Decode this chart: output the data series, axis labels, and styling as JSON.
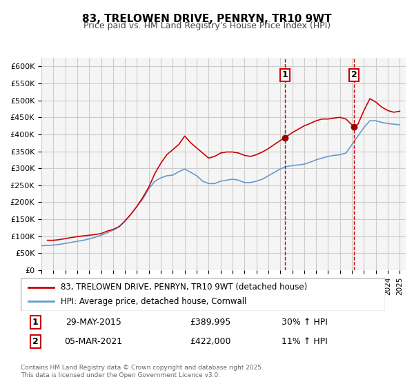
{
  "title": "83, TRELOWEN DRIVE, PENRYN, TR10 9WT",
  "subtitle": "Price paid vs. HM Land Registry's House Price Index (HPI)",
  "legend_line1": "83, TRELOWEN DRIVE, PENRYN, TR10 9WT (detached house)",
  "legend_line2": "HPI: Average price, detached house, Cornwall",
  "footnote": "Contains HM Land Registry data © Crown copyright and database right 2025.\nThis data is licensed under the Open Government Licence v3.0.",
  "red_color": "#cc0000",
  "blue_color": "#6699cc",
  "marker_color": "#990000",
  "vline_color": "#cc0000",
  "grid_color": "#cccccc",
  "bg_color": "#ffffff",
  "plot_bg_color": "#f5f5f5",
  "ylim": [
    0,
    625000
  ],
  "yticks": [
    0,
    50000,
    100000,
    150000,
    200000,
    250000,
    300000,
    350000,
    400000,
    450000,
    500000,
    550000,
    600000
  ],
  "ytick_labels": [
    "£0",
    "£50K",
    "£100K",
    "£150K",
    "£200K",
    "£250K",
    "£300K",
    "£350K",
    "£400K",
    "£450K",
    "£500K",
    "£550K",
    "£600K"
  ],
  "xlim_start": 1995.0,
  "xlim_end": 2025.5,
  "event1_x": 2015.41,
  "event1_label": "1",
  "event1_price": "£389,995",
  "event1_hpi": "30% ↑ HPI",
  "event1_date": "29-MAY-2015",
  "event2_x": 2021.17,
  "event2_label": "2",
  "event2_price": "£422,000",
  "event2_hpi": "11% ↑ HPI",
  "event2_date": "05-MAR-2021",
  "red_x": [
    1995.5,
    1996.0,
    1996.5,
    1997.0,
    1997.5,
    1998.0,
    1998.5,
    1999.0,
    1999.5,
    2000.0,
    2000.5,
    2001.0,
    2001.5,
    2002.0,
    2002.5,
    2003.0,
    2003.5,
    2004.0,
    2004.5,
    2005.0,
    2005.5,
    2006.0,
    2006.5,
    2007.0,
    2007.5,
    2008.0,
    2008.5,
    2009.0,
    2009.5,
    2010.0,
    2010.5,
    2011.0,
    2011.5,
    2012.0,
    2012.5,
    2013.0,
    2013.5,
    2014.0,
    2014.5,
    2015.0,
    2015.41,
    2015.5,
    2016.0,
    2016.5,
    2017.0,
    2017.5,
    2018.0,
    2018.5,
    2019.0,
    2019.5,
    2020.0,
    2020.5,
    2021.17,
    2021.5,
    2022.0,
    2022.5,
    2023.0,
    2023.5,
    2024.0,
    2024.5,
    2025.0
  ],
  "red_y": [
    88000,
    88000,
    90000,
    93000,
    96000,
    99000,
    101000,
    103000,
    105000,
    108000,
    115000,
    120000,
    128000,
    145000,
    165000,
    188000,
    215000,
    245000,
    285000,
    315000,
    340000,
    355000,
    370000,
    395000,
    375000,
    360000,
    345000,
    330000,
    335000,
    345000,
    348000,
    348000,
    345000,
    338000,
    335000,
    340000,
    348000,
    358000,
    370000,
    382000,
    389995,
    393000,
    405000,
    415000,
    425000,
    432000,
    440000,
    445000,
    445000,
    448000,
    450000,
    445000,
    422000,
    430000,
    470000,
    505000,
    495000,
    480000,
    470000,
    465000,
    468000
  ],
  "blue_x": [
    1995.0,
    1995.5,
    1996.0,
    1996.5,
    1997.0,
    1997.5,
    1998.0,
    1998.5,
    1999.0,
    1999.5,
    2000.0,
    2000.5,
    2001.0,
    2001.5,
    2002.0,
    2002.5,
    2003.0,
    2003.5,
    2004.0,
    2004.5,
    2005.0,
    2005.5,
    2006.0,
    2006.5,
    2007.0,
    2007.5,
    2008.0,
    2008.5,
    2009.0,
    2009.5,
    2010.0,
    2010.5,
    2011.0,
    2011.5,
    2012.0,
    2012.5,
    2013.0,
    2013.5,
    2014.0,
    2014.5,
    2015.0,
    2015.5,
    2016.0,
    2016.5,
    2017.0,
    2017.5,
    2018.0,
    2018.5,
    2019.0,
    2019.5,
    2020.0,
    2020.5,
    2021.0,
    2021.5,
    2022.0,
    2022.5,
    2023.0,
    2023.5,
    2024.0,
    2024.5,
    2025.0
  ],
  "blue_y": [
    72000,
    73000,
    74000,
    76000,
    79000,
    82000,
    85000,
    88000,
    92000,
    97000,
    103000,
    110000,
    118000,
    128000,
    145000,
    165000,
    188000,
    210000,
    240000,
    262000,
    272000,
    278000,
    280000,
    290000,
    298000,
    288000,
    278000,
    262000,
    255000,
    255000,
    262000,
    265000,
    268000,
    265000,
    258000,
    258000,
    262000,
    268000,
    278000,
    288000,
    298000,
    305000,
    308000,
    310000,
    312000,
    318000,
    325000,
    330000,
    335000,
    338000,
    340000,
    345000,
    370000,
    395000,
    420000,
    440000,
    440000,
    435000,
    432000,
    430000,
    428000
  ]
}
